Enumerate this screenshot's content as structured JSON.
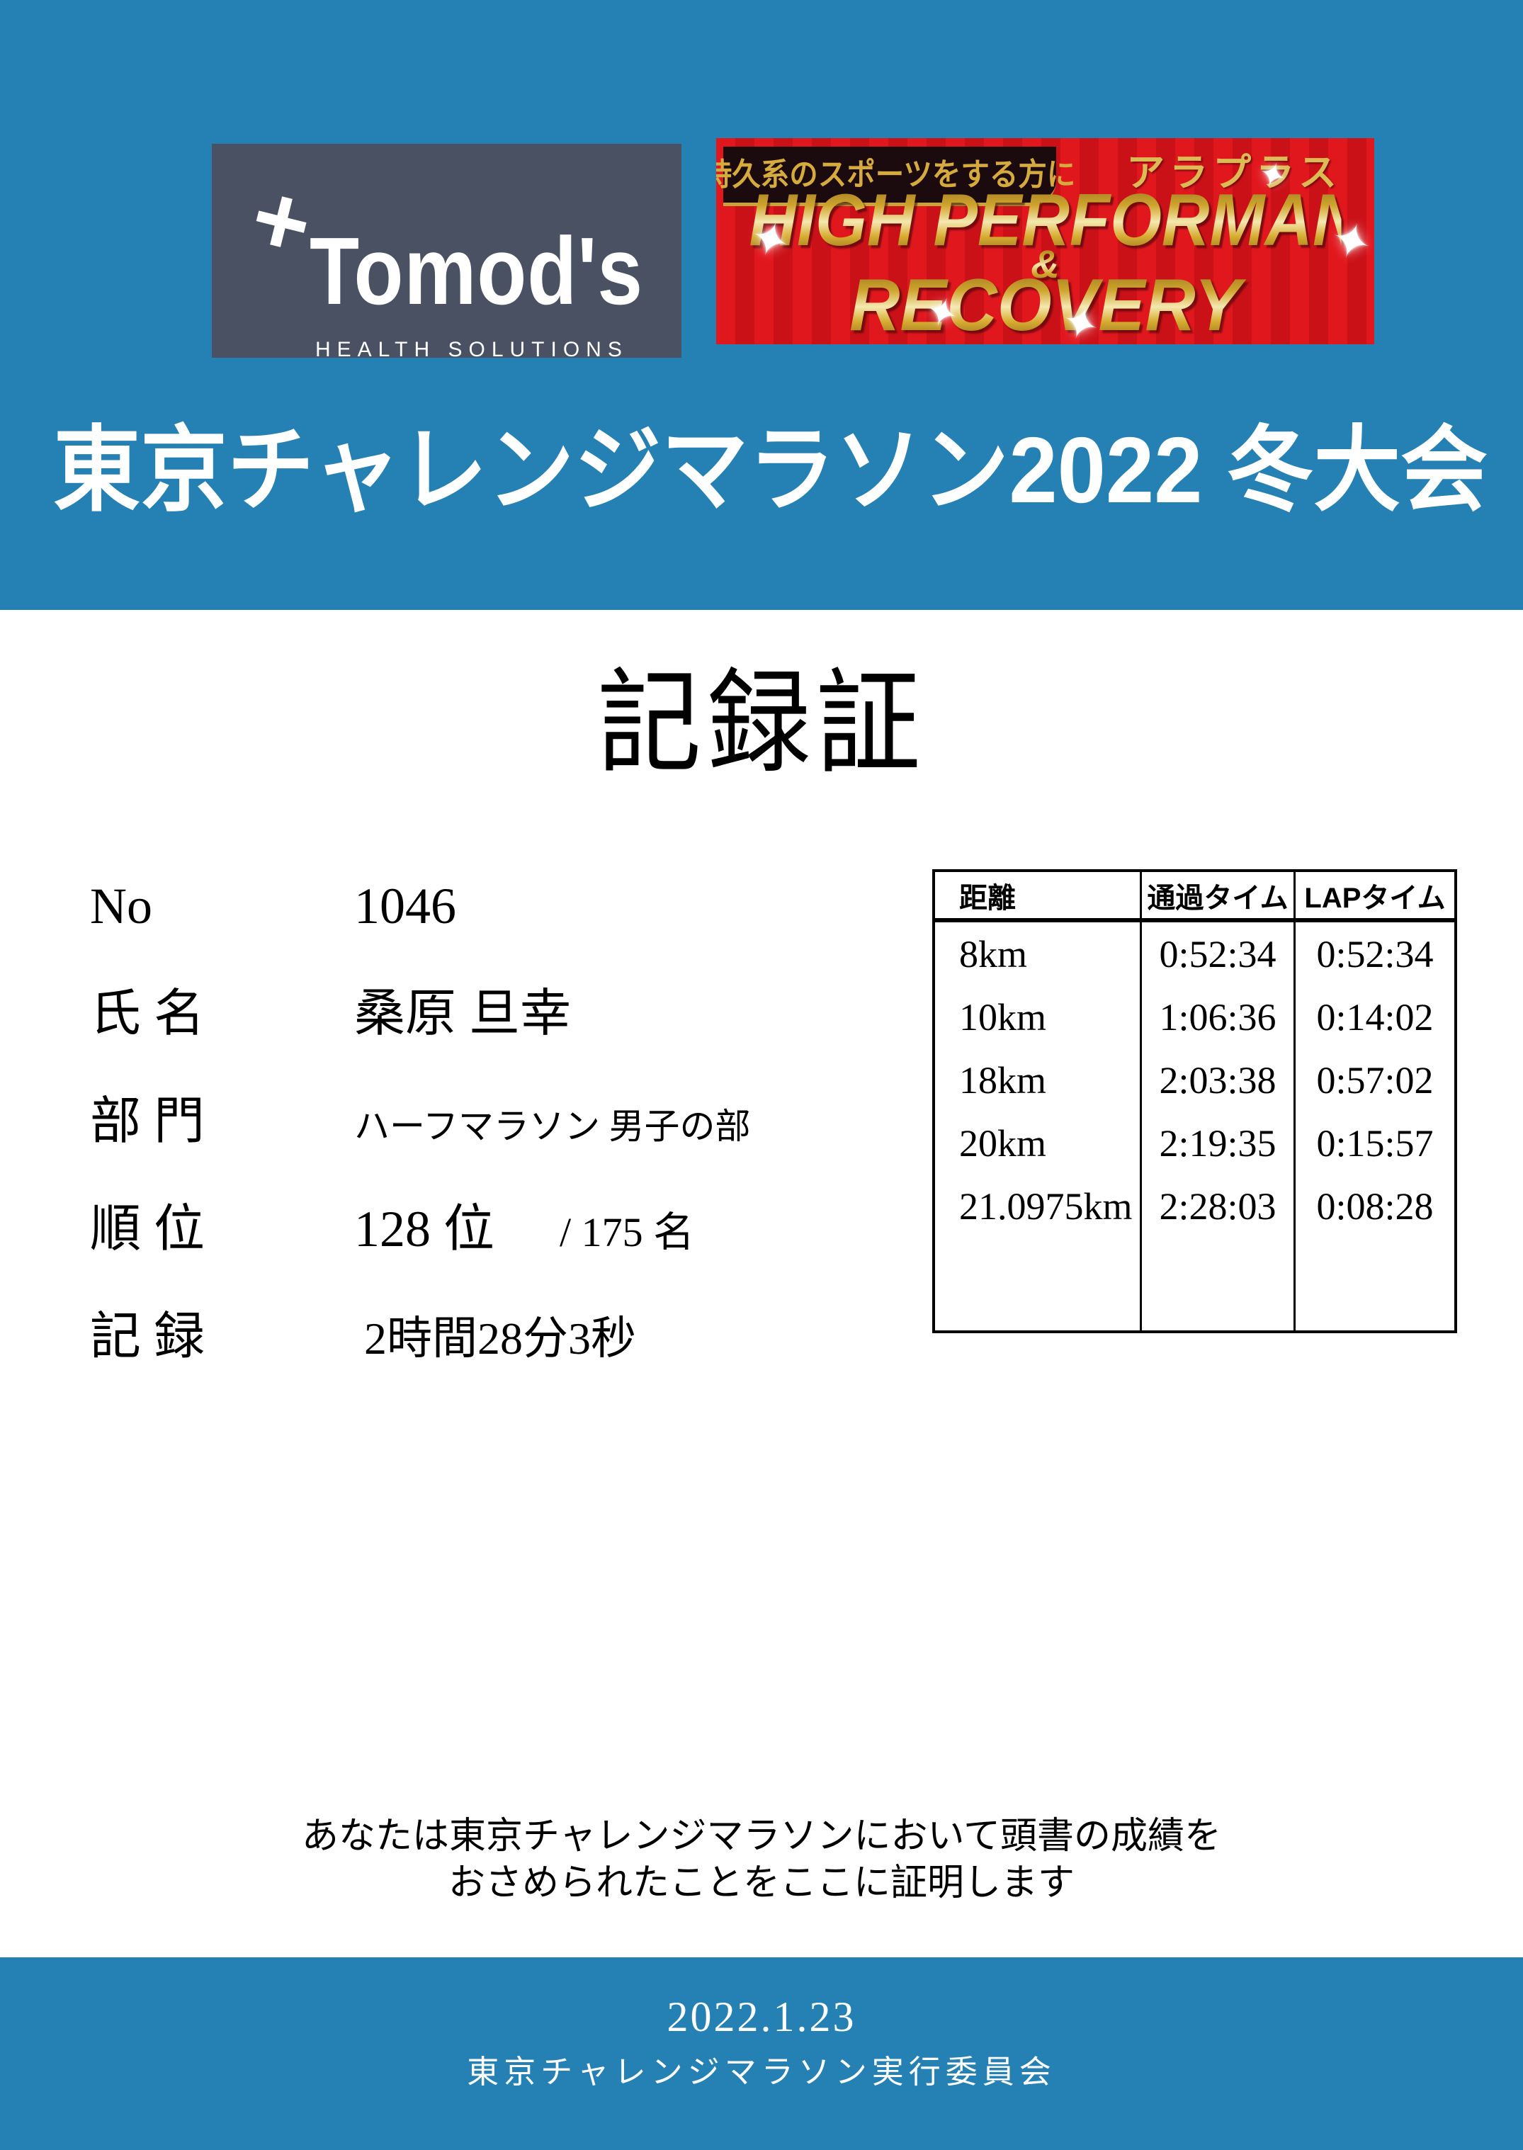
{
  "colors": {
    "page_blue": "#2581b4",
    "logo_slate": "#495163",
    "banner_red": "#e1171e",
    "banner_red_dark": "#cb1118",
    "gold": "#d4a93c",
    "text_black": "#000000",
    "text_white": "#ffffff"
  },
  "icons": {
    "tomods_plus": "+",
    "sparkle": "✦"
  },
  "header": {
    "tomods_logo": {
      "brand": "Tomod's",
      "tagline": "HEALTH SOLUTIONS"
    },
    "ad_banner": {
      "tagline": "持久系のスポーツをする方に",
      "brand": "アラプラス",
      "line1": "HIGH PERFORMANCE",
      "ampersand": "&",
      "line2": "RECOVERY"
    },
    "title": "東京チャレンジマラソン2022 冬大会"
  },
  "certificate": {
    "heading": "記録証",
    "fields": [
      {
        "label": "No",
        "value": "1046"
      },
      {
        "label": "氏 名",
        "value": "桑原 旦幸"
      },
      {
        "label": "部 門",
        "value": "ハーフマラソン 男子の部"
      },
      {
        "label": "順 位",
        "value": "128 位",
        "suffix": "/ 175 名"
      },
      {
        "label": "記 録",
        "value": "2時間28分3秒"
      }
    ],
    "statement_line1": "あなたは東京チャレンジマラソンにおいて頭書の成績を",
    "statement_line2": "おさめられたことをここに証明します"
  },
  "split_table": {
    "headers": [
      "距離",
      "通過タイム",
      "LAPタイム"
    ],
    "rows": [
      [
        "8km",
        "0:52:34",
        "0:52:34"
      ],
      [
        "10km",
        "1:06:36",
        "0:14:02"
      ],
      [
        "18km",
        "2:03:38",
        "0:57:02"
      ],
      [
        "20km",
        "2:19:35",
        "0:15:57"
      ],
      [
        "21.0975km",
        "2:28:03",
        "0:08:28"
      ]
    ]
  },
  "footer": {
    "date": "2022.1.23",
    "organization": "東京チャレンジマラソン実行委員会"
  }
}
